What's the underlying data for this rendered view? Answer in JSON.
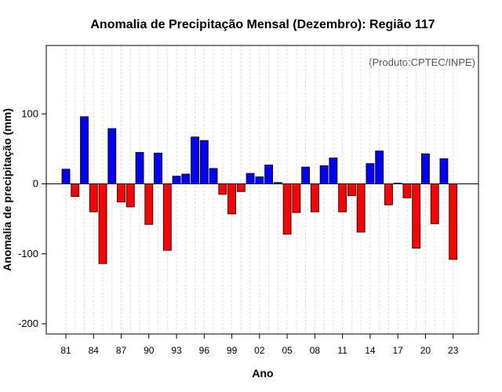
{
  "chart_data": {
    "type": "bar",
    "title": "Anomalia de Precipitação Mensal (Dezembro): Região 117",
    "source_note": "(Produto:CPTEC/INPE)",
    "xlabel": "Ano",
    "ylabel": "Anomalia de precipitação (mm)",
    "ylim": [
      -215,
      197
    ],
    "yticks": [
      -200,
      -100,
      0,
      100
    ],
    "xticks": [
      "81",
      "84",
      "87",
      "90",
      "93",
      "96",
      "99",
      "02",
      "05",
      "08",
      "11",
      "14",
      "17",
      "20",
      "23"
    ],
    "grid": "vertical dotted",
    "positive_color": "#0000ff",
    "negative_color": "#ff0000",
    "years": [
      1981,
      1982,
      1983,
      1984,
      1985,
      1986,
      1987,
      1988,
      1989,
      1990,
      1991,
      1992,
      1993,
      1994,
      1995,
      1996,
      1997,
      1998,
      1999,
      2000,
      2001,
      2002,
      2003,
      2004,
      2005,
      2006,
      2007,
      2008,
      2009,
      2010,
      2011,
      2012,
      2013,
      2014,
      2015,
      2016,
      2017,
      2018,
      2019,
      2020,
      2021,
      2022,
      2023
    ],
    "values": [
      21,
      -18,
      96,
      -40,
      -114,
      79,
      -26,
      -33,
      45,
      -58,
      44,
      -95,
      11,
      14,
      67,
      62,
      22,
      -15,
      -43,
      -11,
      15,
      10,
      27,
      2,
      -72,
      -41,
      24,
      -40,
      26,
      37,
      -40,
      -17,
      -69,
      29,
      47,
      -30,
      1,
      -20,
      -92,
      43,
      -57,
      36,
      -108
    ]
  }
}
